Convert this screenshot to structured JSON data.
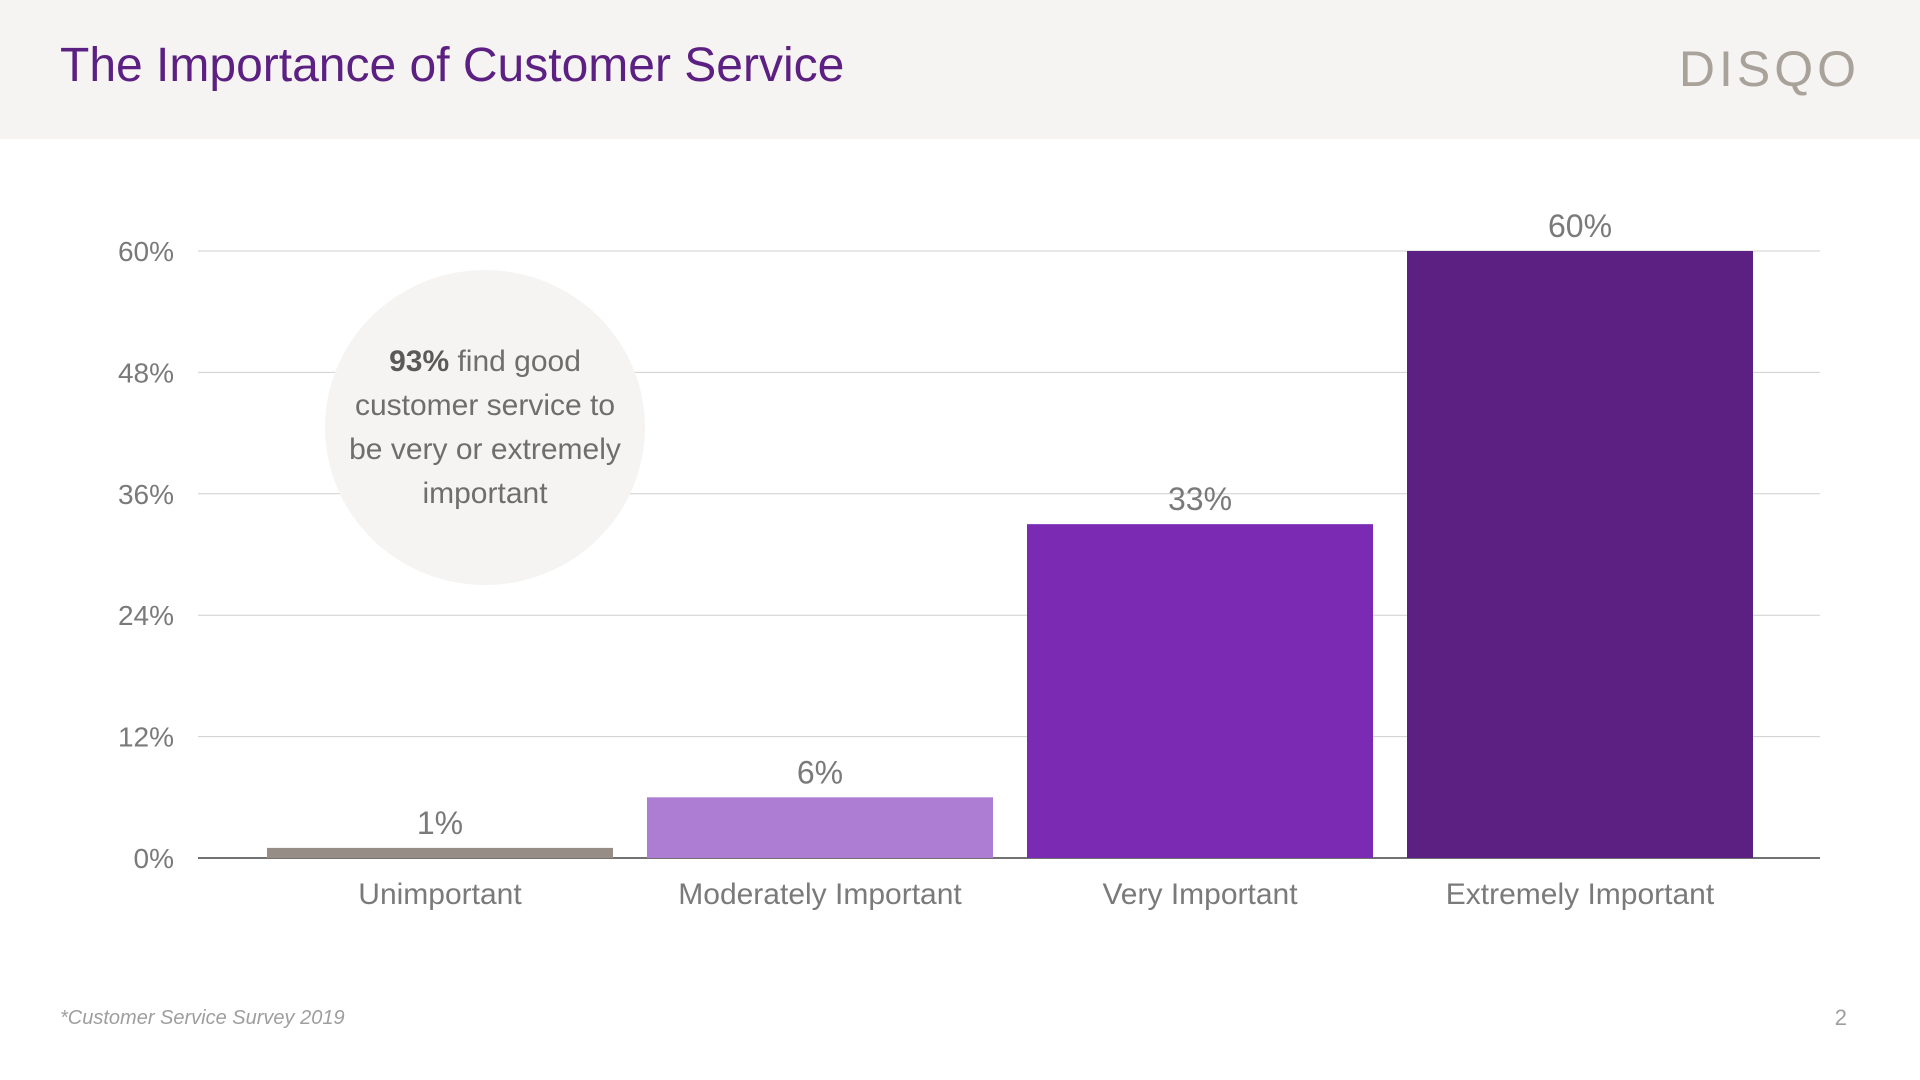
{
  "slide": {
    "title": "The Importance of Customer Service",
    "logo": "DISQO",
    "callout_bold": "93%",
    "callout_rest": " find good customer service to be very or extremely important",
    "footnote": "*Customer Service Survey 2019",
    "page_number": "2"
  },
  "chart_data": {
    "type": "bar",
    "categories": [
      "Unimportant",
      "Moderately Important",
      "Very Important",
      "Extremely Important"
    ],
    "values": [
      1,
      6,
      33,
      60
    ],
    "value_labels": [
      "1%",
      "6%",
      "33%",
      "60%"
    ],
    "colors": [
      "#968e86",
      "#ad7dd4",
      "#7b2ab4",
      "#5c1f82"
    ],
    "ylim": [
      0,
      60
    ],
    "yticks": [
      0,
      12,
      24,
      36,
      48,
      60
    ],
    "ytick_labels": [
      "0%",
      "12%",
      "24%",
      "36%",
      "48%",
      "60%"
    ],
    "grid": true,
    "title": "",
    "xlabel": "",
    "ylabel": ""
  }
}
